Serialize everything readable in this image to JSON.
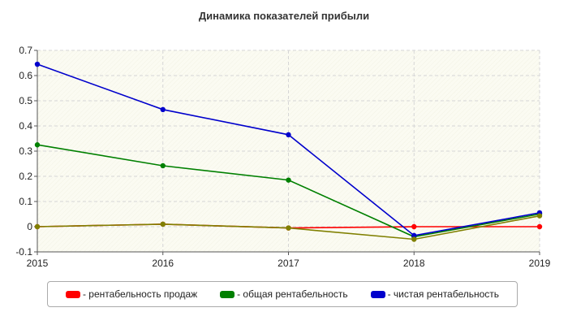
{
  "chart_data": {
    "type": "line",
    "title": "Динамика показателей прибыли",
    "x": [
      "2015",
      "2016",
      "2017",
      "2018",
      "2019"
    ],
    "ylim": [
      -0.1,
      0.7
    ],
    "yticks": [
      "0.7",
      "0.6",
      "0.5",
      "0.4",
      "0.3",
      "0.2",
      "0.1",
      "0",
      "-0.1"
    ],
    "grid": true,
    "legend_position": "bottom",
    "series": [
      {
        "name": "- рентабельность продаж",
        "color": "#ff0000",
        "values": [
          0.0,
          0.01,
          -0.005,
          0.0,
          0.0
        ]
      },
      {
        "name": "- общая рентабельность",
        "color": "#008000",
        "values": [
          0.325,
          0.242,
          0.185,
          -0.04,
          0.05
        ]
      },
      {
        "name": "- чистая рентабельность",
        "color": "#0000cc",
        "values": [
          0.645,
          0.465,
          0.365,
          -0.035,
          0.055
        ]
      },
      {
        "name": "",
        "color": "#808000",
        "values": [
          0.0,
          0.01,
          -0.005,
          -0.05,
          0.043
        ]
      }
    ]
  }
}
